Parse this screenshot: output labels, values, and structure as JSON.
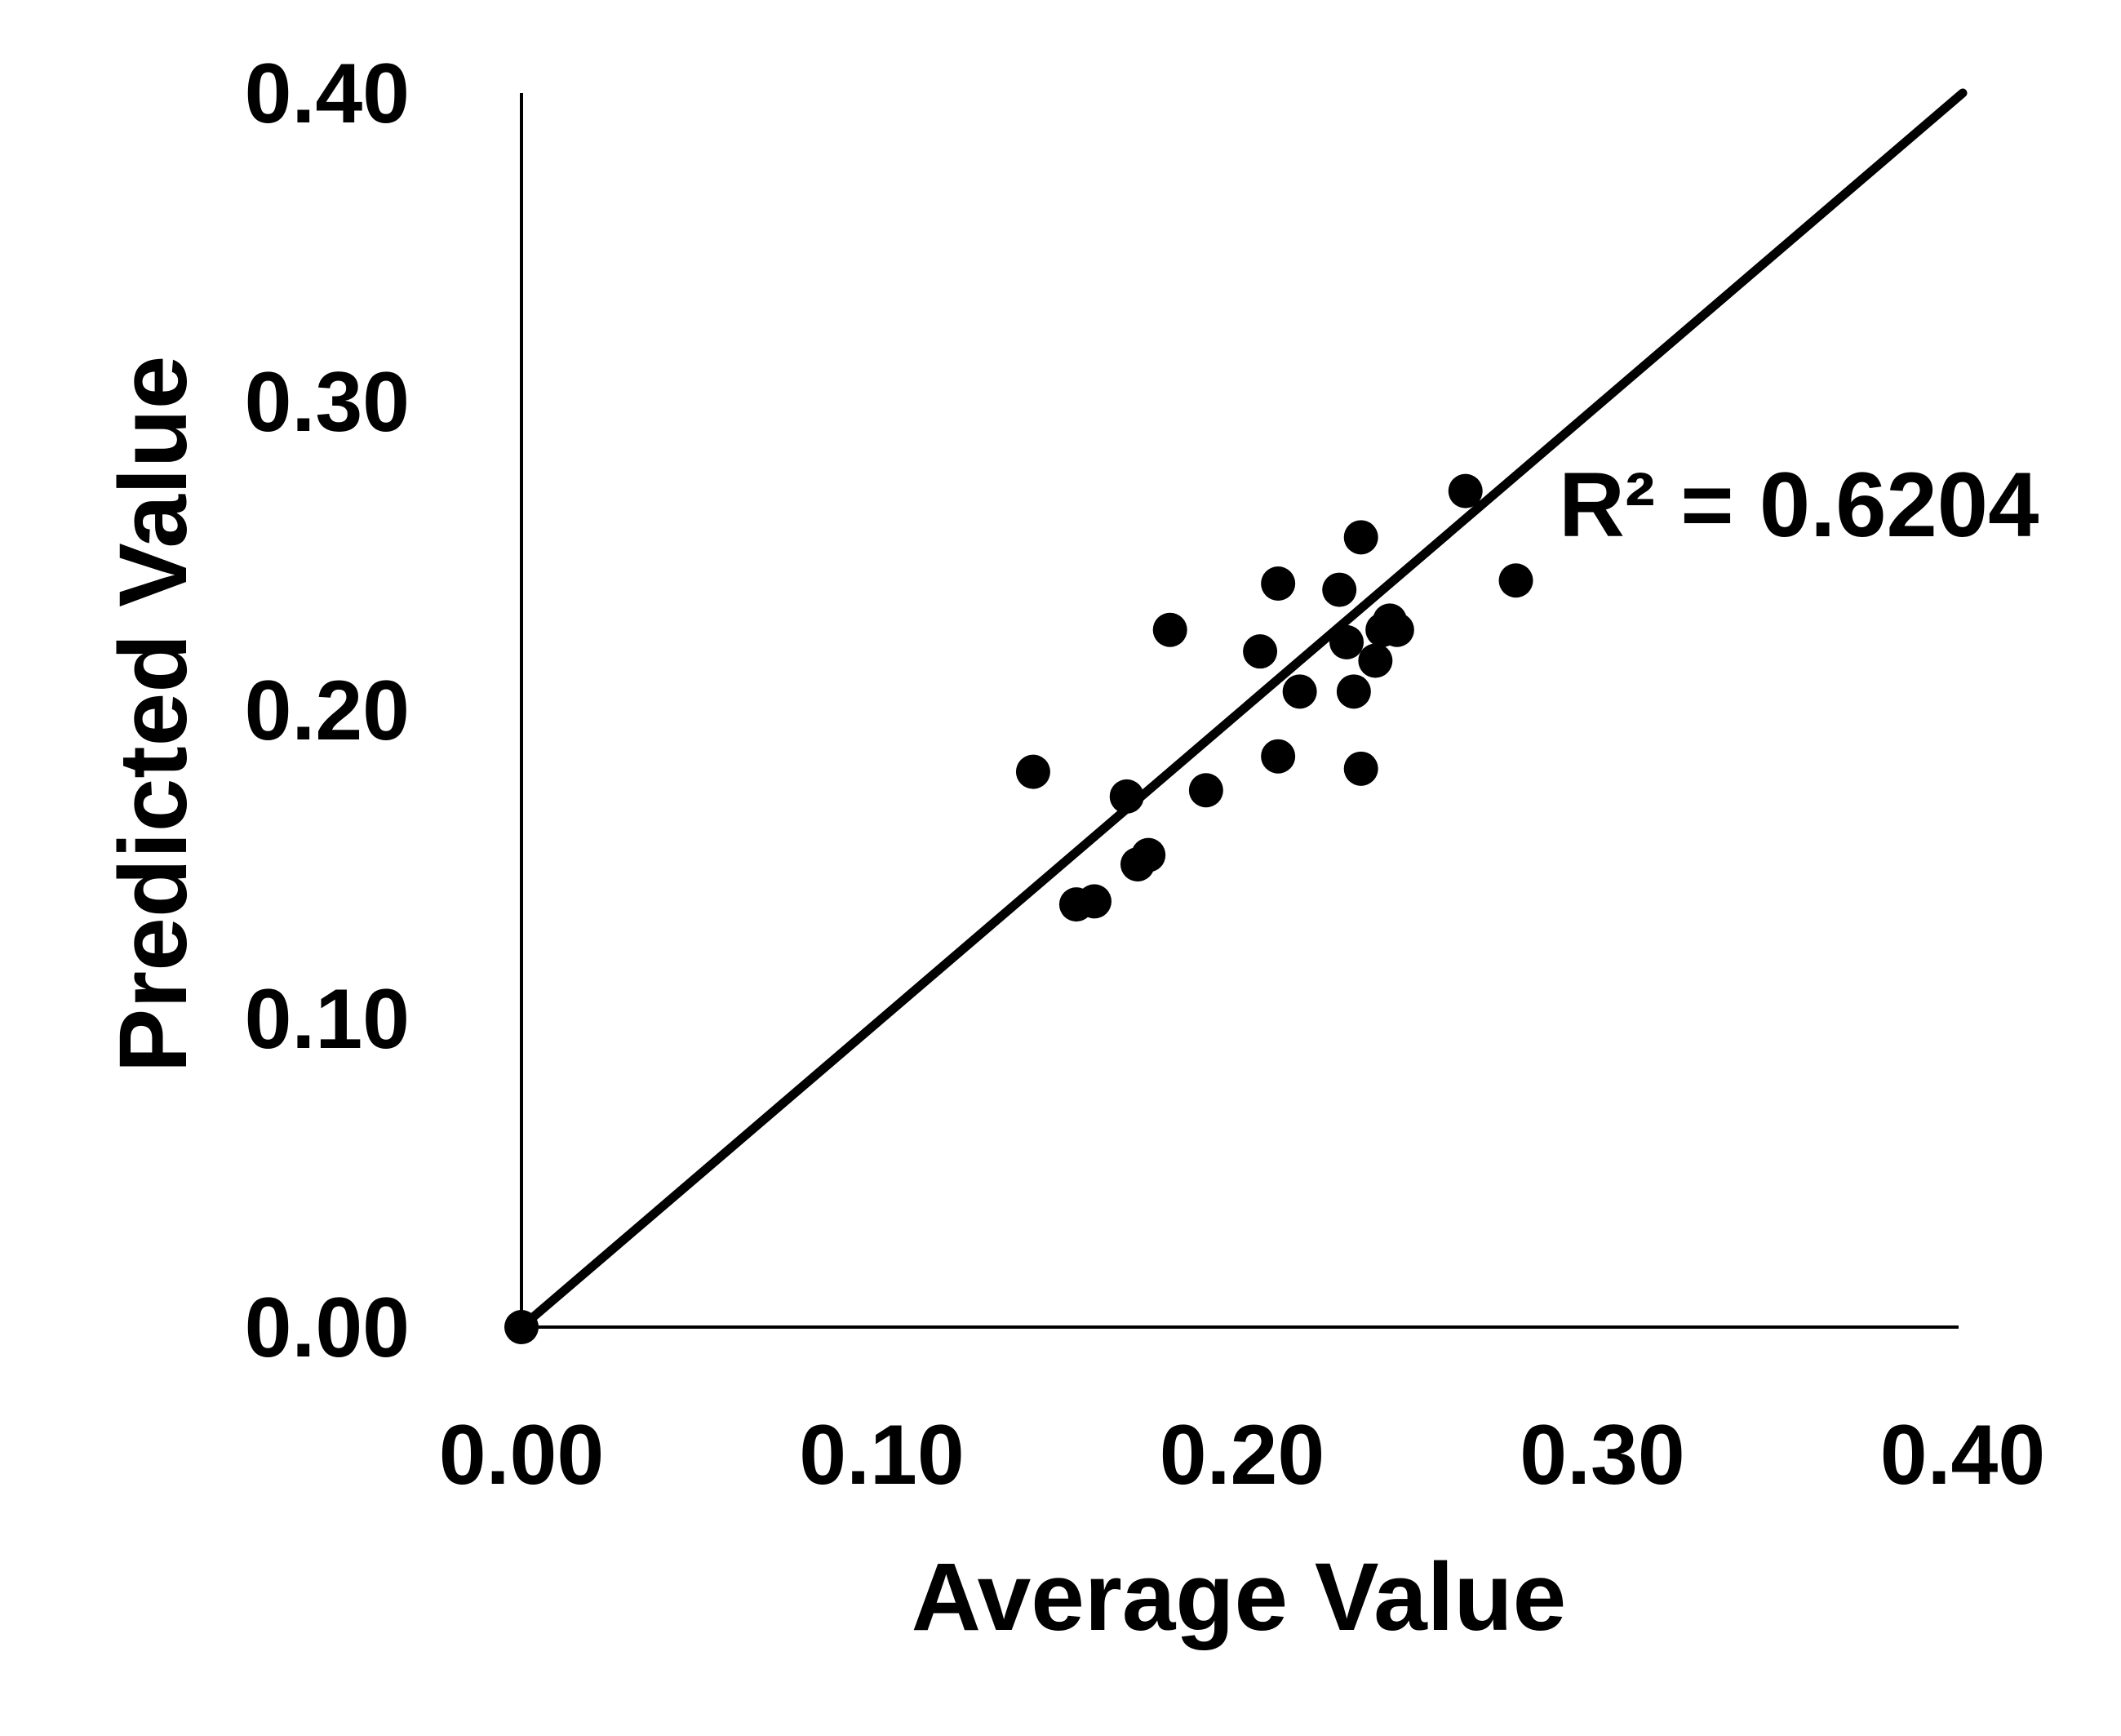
{
  "chart_data": {
    "type": "scatter",
    "title": "",
    "xlabel": "Average Value",
    "ylabel": "Predicted Value",
    "xlim": [
      0,
      0.4
    ],
    "ylim": [
      0,
      0.4
    ],
    "x_ticks": [
      "0.00",
      "0.10",
      "0.20",
      "0.30",
      "0.40"
    ],
    "y_ticks": [
      "0.00",
      "0.10",
      "0.20",
      "0.30",
      "0.40"
    ],
    "grid": false,
    "legend": "none",
    "series": [
      {
        "name": "data",
        "points": [
          {
            "x": 0.0,
            "y": 0.0
          },
          {
            "x": 0.142,
            "y": 0.18
          },
          {
            "x": 0.154,
            "y": 0.137
          },
          {
            "x": 0.159,
            "y": 0.138
          },
          {
            "x": 0.168,
            "y": 0.172
          },
          {
            "x": 0.171,
            "y": 0.15
          },
          {
            "x": 0.174,
            "y": 0.153
          },
          {
            "x": 0.18,
            "y": 0.226
          },
          {
            "x": 0.19,
            "y": 0.174
          },
          {
            "x": 0.205,
            "y": 0.219
          },
          {
            "x": 0.21,
            "y": 0.241
          },
          {
            "x": 0.21,
            "y": 0.185
          },
          {
            "x": 0.216,
            "y": 0.206
          },
          {
            "x": 0.227,
            "y": 0.239
          },
          {
            "x": 0.229,
            "y": 0.222
          },
          {
            "x": 0.231,
            "y": 0.206
          },
          {
            "x": 0.233,
            "y": 0.256
          },
          {
            "x": 0.233,
            "y": 0.181
          },
          {
            "x": 0.237,
            "y": 0.216
          },
          {
            "x": 0.239,
            "y": 0.226
          },
          {
            "x": 0.241,
            "y": 0.229
          },
          {
            "x": 0.243,
            "y": 0.226
          },
          {
            "x": 0.262,
            "y": 0.271
          },
          {
            "x": 0.276,
            "y": 0.242
          }
        ]
      }
    ],
    "trendline": {
      "x": [
        0,
        0.4
      ],
      "y": [
        0,
        0.4
      ]
    },
    "annotation": "R² = 0.6204"
  }
}
